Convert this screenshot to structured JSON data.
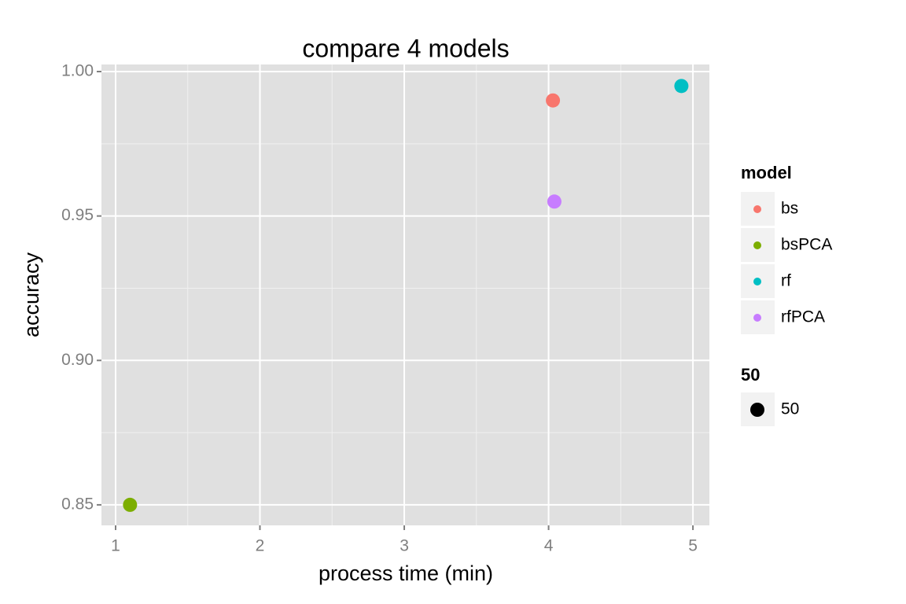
{
  "chart_data": {
    "type": "scatter",
    "title": "compare 4 models",
    "x_label": "process time (min)",
    "y_label": "accuracy",
    "xlim": [
      0.902,
      5.114
    ],
    "ylim": [
      0.8429,
      1.00245
    ],
    "xticks": [
      1,
      2,
      3,
      4,
      5
    ],
    "yticks": [
      {
        "value": 0.85,
        "label": "0.85"
      },
      {
        "value": 0.9,
        "label": "0.90"
      },
      {
        "value": 0.95,
        "label": "0.95"
      },
      {
        "value": 1,
        "label": "1.00"
      }
    ],
    "xminorticks": [
      1.5,
      2.5,
      3.5,
      4.5
    ],
    "yminorticks": [
      0.875,
      0.925,
      0.975
    ],
    "grid": true,
    "legend_position": "right",
    "legend_title": "model",
    "series": [
      {
        "name": "bs",
        "color": "#F8766D",
        "x": [
          4.03
        ],
        "values": [
          0.99
        ]
      },
      {
        "name": "bsPCA",
        "color": "#7CAE00",
        "x": [
          1.1
        ],
        "values": [
          0.85
        ]
      },
      {
        "name": "rf",
        "color": "#00BFC4",
        "x": [
          4.92
        ],
        "values": [
          0.995
        ]
      },
      {
        "name": "rfPCA",
        "color": "#C77CFF",
        "x": [
          4.04
        ],
        "values": [
          0.955
        ]
      }
    ],
    "size_legend": {
      "title": "50",
      "labels": [
        "50"
      ]
    }
  }
}
